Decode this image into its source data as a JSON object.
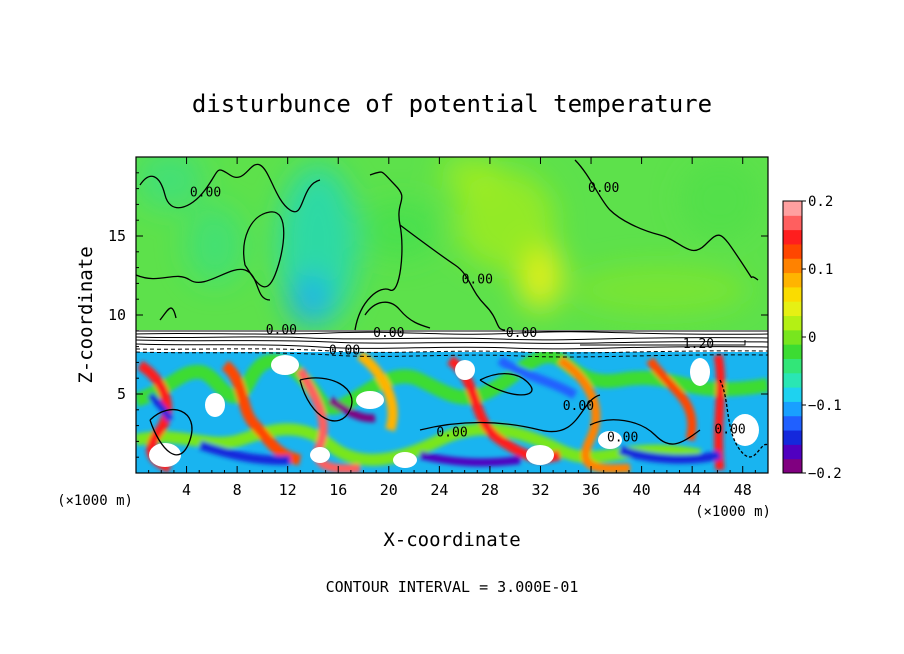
{
  "chart_data": {
    "type": "heatmap",
    "title": "disturbunce of potential temperature",
    "xlabel": "X-coordinate",
    "ylabel": "Z-coordinate",
    "x_unit_left": "(×1000 m)",
    "x_unit_right": "(×1000 m)",
    "xlim": [
      0,
      50
    ],
    "ylim": [
      0,
      20
    ],
    "x_ticks": [
      4,
      8,
      12,
      16,
      20,
      24,
      28,
      32,
      36,
      40,
      44,
      48
    ],
    "x_tick_labels": [
      "4",
      "8",
      "12",
      "16",
      "20",
      "24",
      "28",
      "32",
      "36",
      "40",
      "44",
      "48"
    ],
    "y_ticks": [
      5,
      10,
      15
    ],
    "y_tick_labels": [
      "5",
      "10",
      "15"
    ],
    "footer": "CONTOUR INTERVAL = 3.000E-01",
    "colorbar": {
      "min": -0.2,
      "max": 0.2,
      "tick_values": [
        0.2,
        0.1,
        0,
        -0.1,
        -0.2
      ],
      "tick_labels": [
        "0.2",
        "0.1",
        "0",
        "−0.1",
        "−0.2"
      ],
      "colors": [
        "#800080",
        "#5000c0",
        "#1428dc",
        "#2060ff",
        "#19a0ff",
        "#1ed2f0",
        "#2ae6b4",
        "#32e678",
        "#3cdc32",
        "#78e61e",
        "#b4f014",
        "#e6f014",
        "#fadc00",
        "#ffb400",
        "#ff8200",
        "#ff4600",
        "#ff1e1e",
        "#ff5f5f",
        "#ffa0a0"
      ]
    },
    "contour_labels": [
      {
        "text": "0.00",
        "x": 5.5,
        "y": 17.5
      },
      {
        "text": "0.00",
        "x": 37.0,
        "y": 17.8
      },
      {
        "text": "0.00",
        "x": 27.0,
        "y": 12.0
      },
      {
        "text": "0.00",
        "x": 11.5,
        "y": 8.8
      },
      {
        "text": "0.00",
        "x": 16.5,
        "y": 7.5
      },
      {
        "text": "0.00",
        "x": 20.0,
        "y": 8.6
      },
      {
        "text": "0.00",
        "x": 30.5,
        "y": 8.6
      },
      {
        "text": "1.20",
        "x": 44.5,
        "y": 7.9
      },
      {
        "text": "0.00",
        "x": 25.0,
        "y": 2.3
      },
      {
        "text": "0.00",
        "x": 35.0,
        "y": 4.0
      },
      {
        "text": "0.00",
        "x": 38.5,
        "y": 2.0
      },
      {
        "text": "0.00",
        "x": 47.0,
        "y": 2.5
      }
    ]
  }
}
